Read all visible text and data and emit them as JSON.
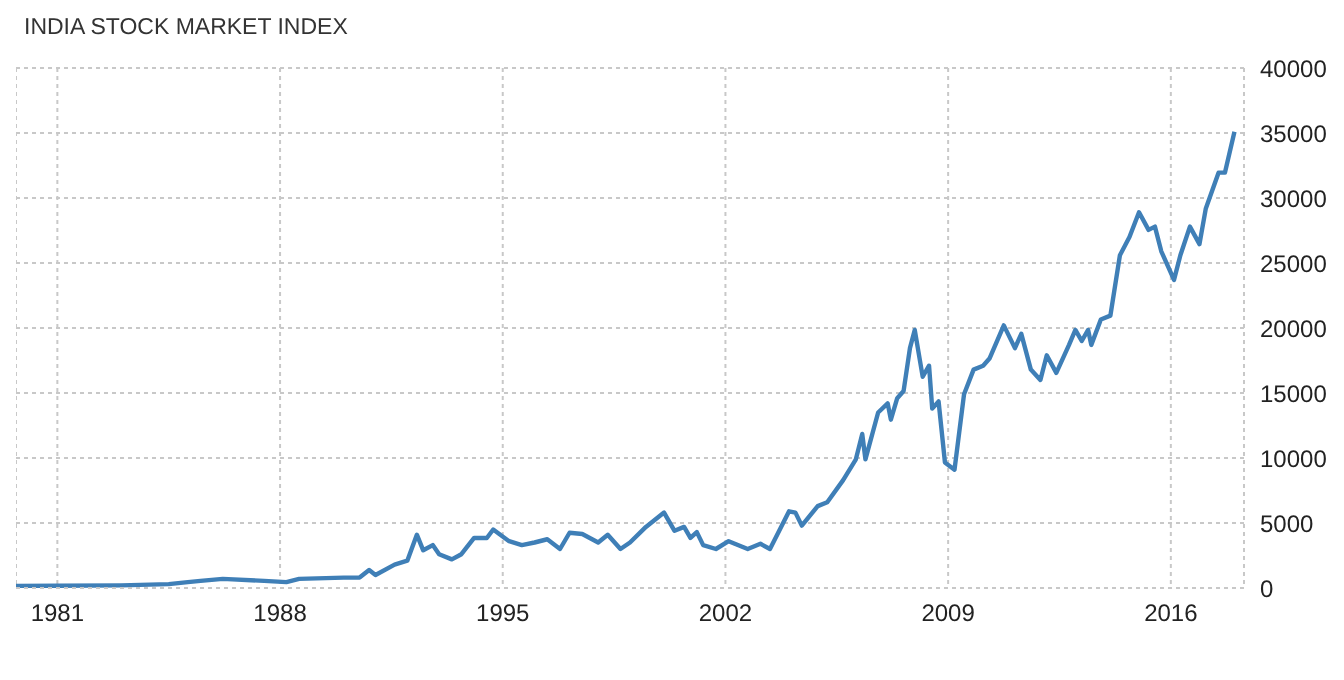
{
  "chart_data": {
    "type": "line",
    "title": "INDIA STOCK MARKET INDEX",
    "x": [
      1979.7,
      1981,
      1983,
      1984.5,
      1985.1,
      1985.5,
      1986.2,
      1987.5,
      1988.2,
      1988.6,
      1990,
      1990.5,
      1990.8,
      1991,
      1991.6,
      1992,
      1992.3,
      1992.5,
      1992.8,
      1993,
      1993.4,
      1993.7,
      1994.1,
      1994.5,
      1994.7,
      1995.2,
      1995.6,
      1996,
      1996.4,
      1996.8,
      1997.1,
      1997.5,
      1998,
      1998.3,
      1998.7,
      1999,
      1999.5,
      2000.07,
      2000.4,
      2000.7,
      2000.9,
      2001.1,
      2001.3,
      2001.7,
      2002.1,
      2002.7,
      2003.1,
      2003.4,
      2004,
      2004.2,
      2004.4,
      2004.9,
      2005.2,
      2005.7,
      2006.1,
      2006.3,
      2006.4,
      2006.8,
      2007.1,
      2007.2,
      2007.4,
      2007.6,
      2007.8,
      2007.95,
      2008.2,
      2008.4,
      2008.5,
      2008.7,
      2008.9,
      2009.2,
      2009.5,
      2009.8,
      2010.1,
      2010.3,
      2010.75,
      2011.1,
      2011.3,
      2011.6,
      2011.9,
      2012.1,
      2012.4,
      2012.8,
      2013,
      2013.2,
      2013.4,
      2013.5,
      2013.8,
      2014.1,
      2014.4,
      2014.7,
      2015,
      2015.3,
      2015.5,
      2015.7,
      2016.1,
      2016.3,
      2016.6,
      2016.9,
      2017.1,
      2017.5,
      2017.7,
      2018
    ],
    "series": [
      {
        "color": "#3f7fb7",
        "values": [
          150,
          170,
          200,
          300,
          450,
          550,
          700,
          550,
          450,
          700,
          800,
          800,
          1380,
          1000,
          1800,
          2100,
          4100,
          2900,
          3300,
          2600,
          2200,
          2600,
          3850,
          3850,
          4500,
          3600,
          3300,
          3500,
          3750,
          3000,
          4250,
          4150,
          3500,
          4100,
          3000,
          3500,
          4700,
          5800,
          4400,
          4700,
          3850,
          4300,
          3300,
          3000,
          3600,
          3000,
          3400,
          3000,
          5900,
          5800,
          4800,
          6300,
          6600,
          8300,
          9900,
          11850,
          9900,
          13500,
          14200,
          12950,
          14600,
          15150,
          18450,
          19850,
          16250,
          17100,
          13800,
          14350,
          9650,
          9100,
          14900,
          16800,
          17100,
          17650,
          20200,
          18450,
          19550,
          16800,
          16000,
          17900,
          16550,
          18700,
          19850,
          19000,
          19850,
          18700,
          20650,
          20950,
          25600,
          27000,
          28900,
          27550,
          27800,
          25900,
          23700,
          25600,
          27800,
          26450,
          29200,
          31950,
          31950,
          35100
        ]
      }
    ],
    "xlim": [
      1979.7,
      2018.3
    ],
    "xticks": [
      1981,
      1988,
      1995,
      2002,
      2009,
      2016
    ],
    "ylim": [
      0,
      40000
    ],
    "yticks": [
      0,
      5000,
      10000,
      15000,
      20000,
      25000,
      30000,
      35000,
      40000
    ],
    "grid": true,
    "legend": false,
    "marker": "none",
    "line_style": "solid"
  }
}
